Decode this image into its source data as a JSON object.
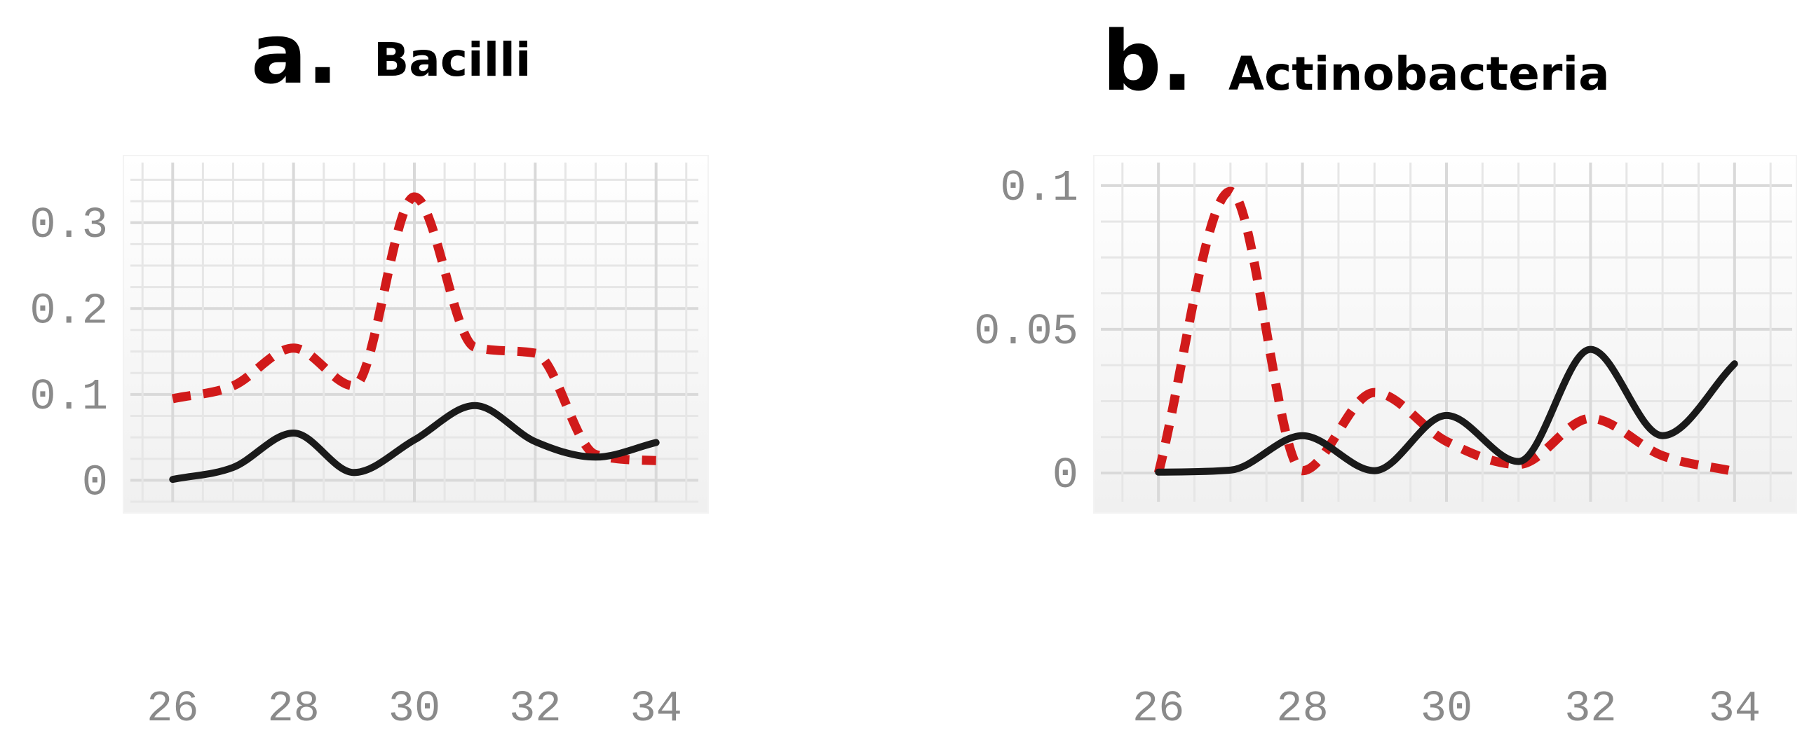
{
  "chart_data": [
    {
      "type": "line",
      "letter": "a.",
      "title": "Bacilli",
      "xlabel": "",
      "ylabel": "",
      "x": [
        26,
        27,
        28,
        29,
        30,
        31,
        32,
        33,
        34
      ],
      "xlim": [
        25.3,
        34.7
      ],
      "ylim": [
        -0.025,
        0.37
      ],
      "xticks": [
        26,
        28,
        30,
        32,
        34
      ],
      "xtick_labels": [
        "26",
        "28",
        "30",
        "32",
        "34"
      ],
      "yticks": [
        0,
        0.1,
        0.2,
        0.3
      ],
      "ytick_labels": [
        "0",
        "0.1",
        "0.2",
        "0.3"
      ],
      "grid": true,
      "series": [
        {
          "style": "solid",
          "color": "#1a1a1a",
          "values": [
            0.001,
            0.015,
            0.055,
            0.009,
            0.047,
            0.087,
            0.045,
            0.027,
            0.044
          ]
        },
        {
          "style": "dashed",
          "color": "#d11a1a",
          "values": [
            0.095,
            0.11,
            0.154,
            0.11,
            0.33,
            0.155,
            0.148,
            0.03,
            0.023
          ]
        }
      ]
    },
    {
      "type": "line",
      "letter": "b.",
      "title": "Actinobacteria",
      "xlabel": "",
      "ylabel": "",
      "x": [
        26,
        27,
        28,
        29,
        30,
        31,
        32,
        33,
        34
      ],
      "xlim": [
        25.2,
        34.8
      ],
      "ylim": [
        -0.01,
        0.108
      ],
      "xticks": [
        26,
        28,
        30,
        32,
        34
      ],
      "xtick_labels": [
        "26",
        "28",
        "30",
        "32",
        "34"
      ],
      "yticks": [
        0,
        0.05,
        0.1
      ],
      "ytick_labels": [
        "0",
        "0.05",
        "0.1"
      ],
      "grid": true,
      "series": [
        {
          "style": "solid",
          "color": "#1a1a1a",
          "values": [
            0.0003,
            0.001,
            0.013,
            0.0008,
            0.02,
            0.004,
            0.043,
            0.013,
            0.038
          ]
        },
        {
          "style": "dashed",
          "color": "#d11a1a",
          "values": [
            0.0,
            0.098,
            0.0008,
            0.028,
            0.011,
            0.003,
            0.019,
            0.006,
            0.0005
          ]
        }
      ]
    }
  ]
}
